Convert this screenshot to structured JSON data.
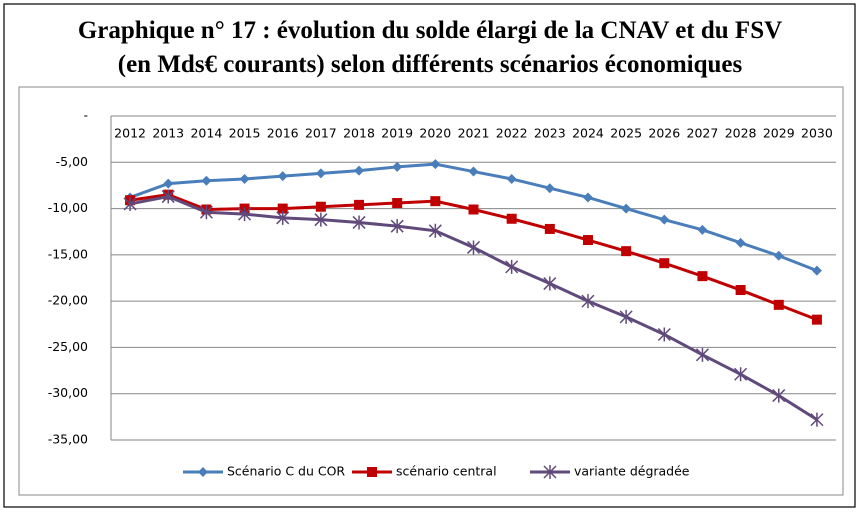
{
  "chart_data": {
    "type": "line",
    "title": "Graphique n° 17 : évolution du solde élargi de la CNAV et du FSV",
    "subtitle": "(en Mds€ courants)  selon différents scénarios économiques",
    "categories": [
      "2012",
      "2013",
      "2014",
      "2015",
      "2016",
      "2017",
      "2018",
      "2019",
      "2020",
      "2021",
      "2022",
      "2023",
      "2024",
      "2025",
      "2026",
      "2027",
      "2028",
      "2029",
      "2030"
    ],
    "series": [
      {
        "name": "Scénario C du COR",
        "color": "#4a7ebb",
        "marker": "diamond",
        "values": [
          -8.8,
          -7.3,
          -7.0,
          -6.8,
          -6.5,
          -6.2,
          -5.9,
          -5.5,
          -5.2,
          -6.0,
          -6.8,
          -7.8,
          -8.8,
          -10.0,
          -11.2,
          -12.3,
          -13.7,
          -15.1,
          -16.7
        ]
      },
      {
        "name": "scénario central",
        "color": "#c00000",
        "marker": "square",
        "values": [
          -9.1,
          -8.5,
          -10.1,
          -10.0,
          -10.0,
          -9.8,
          -9.6,
          -9.4,
          -9.2,
          -10.1,
          -11.1,
          -12.2,
          -13.4,
          -14.6,
          -15.9,
          -17.3,
          -18.8,
          -20.4,
          -22.0
        ]
      },
      {
        "name": "variante dégradée",
        "color": "#604a7b",
        "marker": "star",
        "values": [
          -9.5,
          -8.7,
          -10.4,
          -10.6,
          -11.0,
          -11.2,
          -11.5,
          -11.9,
          -12.4,
          -14.2,
          -16.3,
          -18.1,
          -20.0,
          -21.7,
          -23.6,
          -25.8,
          -27.9,
          -30.2,
          -32.8
        ]
      }
    ],
    "ylim": [
      -35,
      0
    ],
    "yticks": [
      {
        "value": 0,
        "label": "-"
      },
      {
        "value": -5,
        "label": "-5,00"
      },
      {
        "value": -10,
        "label": "-10,00"
      },
      {
        "value": -15,
        "label": "-15,00"
      },
      {
        "value": -20,
        "label": "-20,00"
      },
      {
        "value": -25,
        "label": "-25,00"
      },
      {
        "value": -30,
        "label": "-30,00"
      },
      {
        "value": -35,
        "label": "-35,00"
      }
    ],
    "grid": true,
    "legend": "bottom"
  }
}
